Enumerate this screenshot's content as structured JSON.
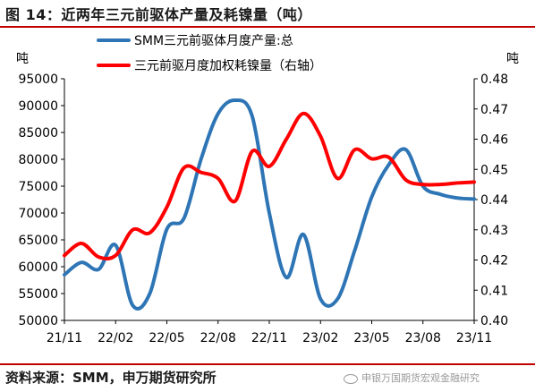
{
  "header": {
    "title": "图 14：近两年三元前驱体产量及耗镍量（吨）"
  },
  "footer": {
    "source": "资料来源：SMM，申万期货研究所",
    "watermark": "申银万国期货宏观金融研究"
  },
  "colors": {
    "series_blue": "#2e75b6",
    "series_red": "#ff0000",
    "accent_rule": "#c00000"
  },
  "chart_data": {
    "type": "line",
    "left_unit": "吨",
    "right_unit": "吨",
    "x": [
      "2021-11",
      "2021-12",
      "2022-01",
      "2022-02",
      "2022-03",
      "2022-04",
      "2022-05",
      "2022-06",
      "2022-07",
      "2022-08",
      "2022-09",
      "2022-10",
      "2022-11",
      "2022-12",
      "2023-01",
      "2023-02",
      "2023-03",
      "2023-04",
      "2023-05",
      "2023-06",
      "2023-07",
      "2023-08",
      "2023-09",
      "2023-10",
      "2023-11"
    ],
    "x_tick_labels": [
      "21/11",
      "22/02",
      "22/05",
      "22/08",
      "22/11",
      "23/02",
      "23/05",
      "23/08",
      "23/11"
    ],
    "x_tick_values": [
      "2021-11",
      "2022-02",
      "2022-05",
      "2022-08",
      "2022-11",
      "2023-02",
      "2023-05",
      "2023-08",
      "2023-11"
    ],
    "ylim_left": [
      50000,
      95000
    ],
    "yticks_left": [
      "50000",
      "55000",
      "60000",
      "65000",
      "70000",
      "75000",
      "80000",
      "85000",
      "90000",
      "95000"
    ],
    "ylim_right": [
      0.4,
      0.48
    ],
    "yticks_right": [
      "0.40",
      "0.41",
      "0.42",
      "0.43",
      "0.44",
      "0.45",
      "0.46",
      "0.47",
      "0.48"
    ],
    "legend_position": "top-center",
    "series": [
      {
        "name": "SMM三元前驱体月度产量:总",
        "axis": "left",
        "color": "#2e75b6",
        "values": [
          58500,
          60800,
          59500,
          64000,
          52800,
          55000,
          67000,
          69000,
          80000,
          88500,
          91000,
          88000,
          70000,
          58000,
          66000,
          54000,
          54000,
          63000,
          73000,
          79000,
          81800,
          75000,
          73500,
          72800,
          72600
        ]
      },
      {
        "name": "三元前驱月度加权耗镍量（右轴）",
        "axis": "right",
        "color": "#ff0000",
        "values": [
          0.4215,
          0.4255,
          0.421,
          0.4215,
          0.43,
          0.429,
          0.4375,
          0.4505,
          0.449,
          0.447,
          0.4395,
          0.456,
          0.451,
          0.46,
          0.4685,
          0.461,
          0.447,
          0.4565,
          0.4535,
          0.454,
          0.4465,
          0.445,
          0.445,
          0.4455,
          0.4458
        ]
      }
    ]
  }
}
